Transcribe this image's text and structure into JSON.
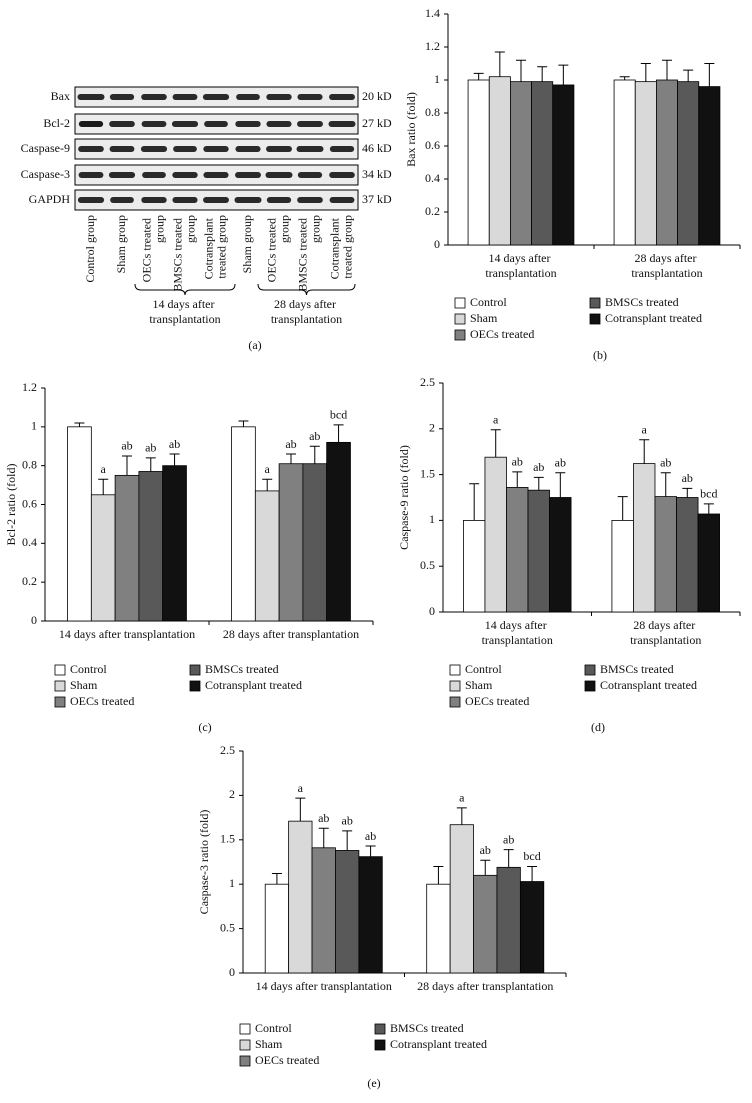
{
  "blot": {
    "panel": "(a)",
    "rows": [
      {
        "label": "Bax",
        "size": "20 kD"
      },
      {
        "label": "Bcl-2",
        "size": "27 kD"
      },
      {
        "label": "Caspase-9",
        "size": "46 kD"
      },
      {
        "label": "Caspase-3",
        "size": "34 kD"
      },
      {
        "label": "GAPDH",
        "size": "37 kD"
      }
    ],
    "lanes": [
      "Control group",
      "Sham group",
      "OECs treated group",
      "BMSCs treated group",
      "Cotransplant treated group",
      "Sham group",
      "OECs treated group",
      "BMSCs treated group",
      "Cotransplant treated group"
    ],
    "groups": [
      "14 days after transplantation",
      "28 days after transplantation"
    ]
  },
  "chart_data": [
    {
      "type": "bar",
      "panel": "(b)",
      "y_label": "Bax ratio (fold)",
      "categories": [
        "14 days after transplantation",
        "28 days after transplantation"
      ],
      "ylim": [
        0,
        1.4
      ],
      "yticks": [
        0,
        0.2,
        0.4,
        0.6,
        0.8,
        1,
        1.2,
        1.4
      ],
      "series": [
        {
          "name": "Control",
          "color": "#ffffff",
          "values": [
            1.0,
            1.0
          ],
          "errors": [
            0.04,
            0.02
          ]
        },
        {
          "name": "Sham",
          "color": "#d9d9d9",
          "values": [
            1.02,
            0.99
          ],
          "errors": [
            0.15,
            0.11
          ]
        },
        {
          "name": "OECs treated",
          "color": "#808080",
          "values": [
            0.99,
            1.0
          ],
          "errors": [
            0.13,
            0.12
          ]
        },
        {
          "name": "BMSCs treated",
          "color": "#595959",
          "values": [
            0.99,
            0.99
          ],
          "errors": [
            0.09,
            0.07
          ]
        },
        {
          "name": "Cotransplant treated",
          "color": "#111111",
          "values": [
            0.97,
            0.96
          ],
          "errors": [
            0.12,
            0.14
          ]
        }
      ]
    },
    {
      "type": "bar",
      "panel": "(c)",
      "y_label": "Bcl-2 ratio (fold)",
      "categories": [
        "14 days after transplantation",
        "28 days after transplantation"
      ],
      "ylim": [
        0,
        1.2
      ],
      "yticks": [
        0,
        0.2,
        0.4,
        0.6,
        0.8,
        1,
        1.2
      ],
      "series": [
        {
          "name": "Control",
          "color": "#ffffff",
          "values": [
            1.0,
            1.0
          ],
          "errors": [
            0.02,
            0.03
          ],
          "labels": [
            null,
            null
          ]
        },
        {
          "name": "Sham",
          "color": "#d9d9d9",
          "values": [
            0.65,
            0.67
          ],
          "errors": [
            0.08,
            0.06
          ],
          "labels": [
            "a",
            "a"
          ]
        },
        {
          "name": "OECs treated",
          "color": "#808080",
          "values": [
            0.75,
            0.81
          ],
          "errors": [
            0.1,
            0.05
          ],
          "labels": [
            "ab",
            "ab"
          ]
        },
        {
          "name": "BMSCs treated",
          "color": "#595959",
          "values": [
            0.77,
            0.81
          ],
          "errors": [
            0.07,
            0.09
          ],
          "labels": [
            "ab",
            "ab"
          ]
        },
        {
          "name": "Cotransplant treated",
          "color": "#111111",
          "values": [
            0.8,
            0.92
          ],
          "errors": [
            0.06,
            0.09
          ],
          "labels": [
            "ab",
            "bcd"
          ]
        }
      ]
    },
    {
      "type": "bar",
      "panel": "(d)",
      "y_label": "Caspase-9 ratio (fold)",
      "categories": [
        "14 days after transplantation",
        "28 days after transplantation"
      ],
      "ylim": [
        0,
        2.5
      ],
      "yticks": [
        0,
        0.5,
        1,
        1.5,
        2,
        2.5
      ],
      "series": [
        {
          "name": "Control",
          "color": "#ffffff",
          "values": [
            1.0,
            1.0
          ],
          "errors": [
            0.4,
            0.26
          ],
          "labels": [
            null,
            null
          ]
        },
        {
          "name": "Sham",
          "color": "#d9d9d9",
          "values": [
            1.69,
            1.62
          ],
          "errors": [
            0.3,
            0.26
          ],
          "labels": [
            "a",
            "a"
          ]
        },
        {
          "name": "OECs treated",
          "color": "#808080",
          "values": [
            1.36,
            1.26
          ],
          "errors": [
            0.17,
            0.26
          ],
          "labels": [
            "ab",
            "ab"
          ]
        },
        {
          "name": "BMSCs treated",
          "color": "#595959",
          "values": [
            1.33,
            1.25
          ],
          "errors": [
            0.14,
            0.1
          ],
          "labels": [
            "ab",
            "ab"
          ]
        },
        {
          "name": "Cotransplant treated",
          "color": "#111111",
          "values": [
            1.25,
            1.07
          ],
          "errors": [
            0.27,
            0.11
          ],
          "labels": [
            "ab",
            "bcd"
          ]
        }
      ]
    },
    {
      "type": "bar",
      "panel": "(e)",
      "y_label": "Caspase-3 ratio (fold)",
      "categories": [
        "14 days after transplantation",
        "28 days after transplantation"
      ],
      "ylim": [
        0,
        2.5
      ],
      "yticks": [
        0,
        0.5,
        1,
        1.5,
        2,
        2.5
      ],
      "series": [
        {
          "name": "Control",
          "color": "#ffffff",
          "values": [
            1.0,
            1.0
          ],
          "errors": [
            0.12,
            0.2
          ],
          "labels": [
            null,
            null
          ]
        },
        {
          "name": "Sham",
          "color": "#d9d9d9",
          "values": [
            1.71,
            1.67
          ],
          "errors": [
            0.26,
            0.19
          ],
          "labels": [
            "a",
            "a"
          ]
        },
        {
          "name": "OECs treated",
          "color": "#808080",
          "values": [
            1.41,
            1.1
          ],
          "errors": [
            0.22,
            0.17
          ],
          "labels": [
            "ab",
            "ab"
          ]
        },
        {
          "name": "BMSCs treated",
          "color": "#595959",
          "values": [
            1.38,
            1.19
          ],
          "errors": [
            0.22,
            0.2
          ],
          "labels": [
            "ab",
            "ab"
          ]
        },
        {
          "name": "Cotransplant treated",
          "color": "#111111",
          "values": [
            1.31,
            1.03
          ],
          "errors": [
            0.12,
            0.17
          ],
          "labels": [
            "ab",
            "bcd"
          ]
        }
      ]
    }
  ]
}
